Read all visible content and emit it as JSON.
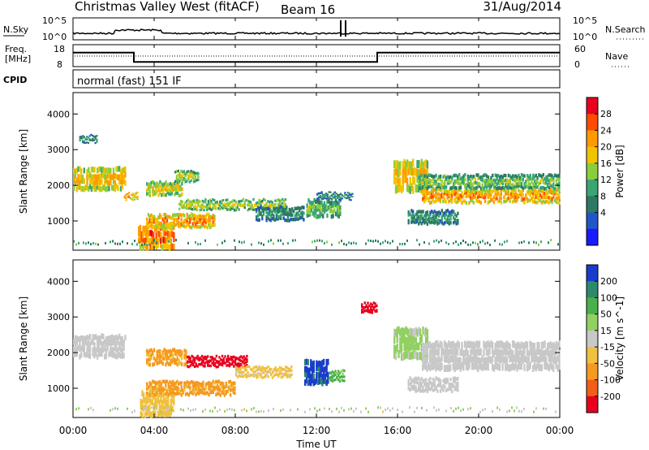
{
  "header": {
    "station": "Christmas Valley West (fitACF)",
    "beam": "Beam 16",
    "date": "31/Aug/2014"
  },
  "noise_panel": {
    "left_label": "N.Sky",
    "right_label": "N.Search",
    "left_ticks": [
      "10^5",
      "10^0"
    ],
    "right_ticks": [
      "10^5",
      "10^0"
    ]
  },
  "freq_panel": {
    "left_label_1": "Freq.",
    "left_label_2": "[MHz]",
    "left_ticks": [
      "18",
      "8"
    ],
    "right_label": "Nave",
    "right_ticks": [
      "60",
      "0"
    ],
    "freq_steps": [
      {
        "from": 0,
        "to": 3,
        "mhz": 15.5
      },
      {
        "from": 3,
        "to": 15,
        "mhz": 10.5
      },
      {
        "from": 15,
        "to": 24,
        "mhz": 15.5
      }
    ]
  },
  "cpid": {
    "label": "CPID",
    "text": "normal (fast) 151 IF"
  },
  "time_axis": {
    "label": "Time UT",
    "ticks": [
      "00:00",
      "04:00",
      "08:00",
      "12:00",
      "16:00",
      "20:00",
      "00:00"
    ]
  },
  "chart_data": [
    {
      "type": "heatmap",
      "name": "power",
      "ylabel": "Slant Range [km]",
      "yticks": [
        "4000",
        "3000",
        "2000",
        "1000"
      ],
      "ylim": [
        180,
        4600
      ],
      "xlim": [
        0,
        24
      ],
      "colorbar_label": "Power [dB]",
      "colorbar_ticks": [
        "28",
        "24",
        "20",
        "16",
        "12",
        "8",
        "4"
      ],
      "colorbar_colors": [
        "#e8001e",
        "#ff4a00",
        "#ff9b00",
        "#f1c400",
        "#8ccd3c",
        "#3aa573",
        "#2d7a63",
        "#2255c8",
        "#1a1aff"
      ],
      "bands": [
        {
          "t0": 0.0,
          "t1": 2.6,
          "r0": 1850,
          "r1": 2500,
          "v": 18
        },
        {
          "t0": 0.3,
          "t1": 1.2,
          "r0": 3200,
          "r1": 3400,
          "v": 8
        },
        {
          "t0": 2.5,
          "t1": 3.2,
          "r0": 1600,
          "r1": 1800,
          "v": 20
        },
        {
          "t0": 3.2,
          "t1": 5.0,
          "r0": 200,
          "r1": 900,
          "v": 22
        },
        {
          "t0": 3.6,
          "t1": 7.0,
          "r0": 800,
          "r1": 1200,
          "v": 20
        },
        {
          "t0": 3.6,
          "t1": 5.4,
          "r0": 1700,
          "r1": 2100,
          "v": 16
        },
        {
          "t0": 5.0,
          "t1": 6.2,
          "r0": 2100,
          "r1": 2400,
          "v": 14
        },
        {
          "t0": 5.2,
          "t1": 10.5,
          "r0": 1300,
          "r1": 1600,
          "v": 14
        },
        {
          "t0": 9.0,
          "t1": 11.4,
          "r0": 1000,
          "r1": 1400,
          "v": 8
        },
        {
          "t0": 11.5,
          "t1": 13.2,
          "r0": 1100,
          "r1": 1600,
          "v": 12
        },
        {
          "t0": 12.0,
          "t1": 13.8,
          "r0": 1600,
          "r1": 1800,
          "v": 8
        },
        {
          "t0": 15.8,
          "t1": 17.5,
          "r0": 1800,
          "r1": 2700,
          "v": 18
        },
        {
          "t0": 17.2,
          "t1": 24.0,
          "r0": 1500,
          "r1": 1900,
          "v": 20
        },
        {
          "t0": 17.0,
          "t1": 24.0,
          "r0": 1900,
          "r1": 2300,
          "v": 12
        },
        {
          "t0": 16.5,
          "t1": 19.0,
          "r0": 900,
          "r1": 1300,
          "v": 8
        }
      ]
    },
    {
      "type": "heatmap",
      "name": "velocity",
      "ylabel": "Slant Range [km]",
      "yticks": [
        "4000",
        "3000",
        "2000",
        "1000"
      ],
      "ylim": [
        180,
        4600
      ],
      "xlim": [
        0,
        24
      ],
      "colorbar_label": "Velocity [m s^-1]",
      "colorbar_ticks": [
        "200",
        "100",
        "50",
        "15",
        "-15",
        "-50",
        "-100",
        "-200"
      ],
      "colorbar_colors": [
        "#1a3ccc",
        "#2c8a6c",
        "#4bb04c",
        "#92d062",
        "#c8c8c8",
        "#f0c040",
        "#f59a20",
        "#f06018",
        "#e8001e"
      ],
      "bands": [
        {
          "t0": 0.0,
          "t1": 2.6,
          "r0": 1850,
          "r1": 2500,
          "v": 0
        },
        {
          "t0": 3.3,
          "t1": 5.0,
          "r0": 200,
          "r1": 900,
          "v": -40
        },
        {
          "t0": 3.6,
          "t1": 8.0,
          "r0": 800,
          "r1": 1200,
          "v": -60
        },
        {
          "t0": 3.6,
          "t1": 5.6,
          "r0": 1650,
          "r1": 2100,
          "v": -60
        },
        {
          "t0": 5.6,
          "t1": 8.6,
          "r0": 1600,
          "r1": 1900,
          "v": -250
        },
        {
          "t0": 8.0,
          "t1": 10.8,
          "r0": 1300,
          "r1": 1600,
          "v": -20
        },
        {
          "t0": 11.4,
          "t1": 12.6,
          "r0": 1100,
          "r1": 1800,
          "v": 220
        },
        {
          "t0": 12.6,
          "t1": 13.4,
          "r0": 1200,
          "r1": 1500,
          "v": 60
        },
        {
          "t0": 14.2,
          "t1": 15.0,
          "r0": 3100,
          "r1": 3400,
          "v": -250
        },
        {
          "t0": 15.8,
          "t1": 17.5,
          "r0": 1800,
          "r1": 2700,
          "v": 20
        },
        {
          "t0": 17.2,
          "t1": 24.0,
          "r0": 1500,
          "r1": 2300,
          "v": 0
        },
        {
          "t0": 16.5,
          "t1": 19.0,
          "r0": 900,
          "r1": 1300,
          "v": 0
        }
      ]
    }
  ]
}
